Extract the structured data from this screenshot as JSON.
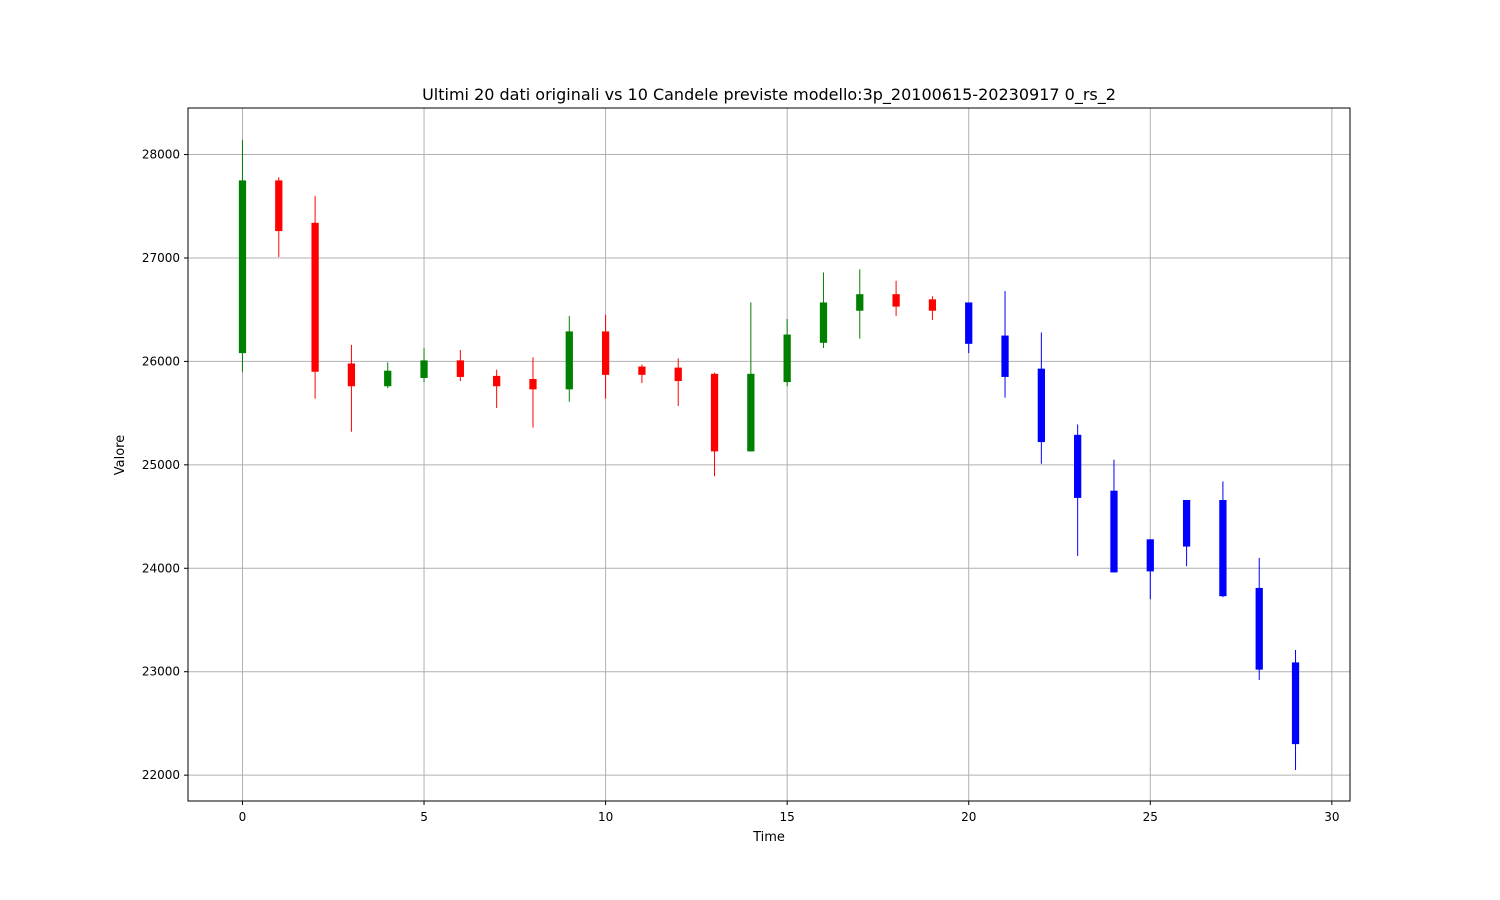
{
  "chart_data": {
    "type": "candlestick",
    "title": "Ultimi 20 dati originali vs 10 Candele previste modello:3p_20100615-20230917 0_rs_2",
    "xlabel": "Time",
    "ylabel": "Valore",
    "xlim": [
      -1.5,
      30.5
    ],
    "ylim": [
      21750,
      28450
    ],
    "xticks": [
      0,
      5,
      10,
      15,
      20,
      25,
      30
    ],
    "yticks": [
      22000,
      23000,
      24000,
      25000,
      26000,
      27000,
      28000
    ],
    "grid": true,
    "colors": {
      "up": "#008000",
      "down": "#ff0000",
      "forecast": "#0000ff"
    },
    "series": [
      {
        "kind": "original",
        "candles": [
          {
            "x": 0,
            "open": 26080,
            "close": 27750,
            "high": 28140,
            "low": 25900
          },
          {
            "x": 1,
            "open": 27750,
            "close": 27260,
            "high": 27780,
            "low": 27010
          },
          {
            "x": 2,
            "open": 27340,
            "close": 25900,
            "high": 27600,
            "low": 25640
          },
          {
            "x": 3,
            "open": 25980,
            "close": 25760,
            "high": 26160,
            "low": 25320
          },
          {
            "x": 4,
            "open": 25760,
            "close": 25910,
            "high": 25990,
            "low": 25740
          },
          {
            "x": 5,
            "open": 25840,
            "close": 26010,
            "high": 26130,
            "low": 25800
          },
          {
            "x": 6,
            "open": 26010,
            "close": 25850,
            "high": 26110,
            "low": 25810
          },
          {
            "x": 7,
            "open": 25860,
            "close": 25760,
            "high": 25920,
            "low": 25550
          },
          {
            "x": 8,
            "open": 25830,
            "close": 25730,
            "high": 26040,
            "low": 25360
          },
          {
            "x": 9,
            "open": 25730,
            "close": 26290,
            "high": 26440,
            "low": 25610
          },
          {
            "x": 10,
            "open": 26290,
            "close": 25870,
            "high": 26450,
            "low": 25640
          },
          {
            "x": 11,
            "open": 25950,
            "close": 25870,
            "high": 25970,
            "low": 25790
          },
          {
            "x": 12,
            "open": 25940,
            "close": 25810,
            "high": 26030,
            "low": 25570
          },
          {
            "x": 13,
            "open": 25880,
            "close": 25130,
            "high": 25890,
            "low": 24890
          },
          {
            "x": 14,
            "open": 25130,
            "close": 25880,
            "high": 26570,
            "low": 25130
          },
          {
            "x": 15,
            "open": 25800,
            "close": 26260,
            "high": 26410,
            "low": 25760
          },
          {
            "x": 16,
            "open": 26180,
            "close": 26570,
            "high": 26860,
            "low": 26130
          },
          {
            "x": 17,
            "open": 26490,
            "close": 26650,
            "high": 26890,
            "low": 26220
          },
          {
            "x": 18,
            "open": 26650,
            "close": 26530,
            "high": 26780,
            "low": 26440
          },
          {
            "x": 19,
            "open": 26600,
            "close": 26490,
            "high": 26630,
            "low": 26400
          }
        ]
      },
      {
        "kind": "forecast",
        "candles": [
          {
            "x": 20,
            "open": 26570,
            "close": 26170,
            "high": 26570,
            "low": 26080
          },
          {
            "x": 21,
            "open": 26250,
            "close": 25850,
            "high": 26680,
            "low": 25650
          },
          {
            "x": 22,
            "open": 25930,
            "close": 25220,
            "high": 26280,
            "low": 25010
          },
          {
            "x": 23,
            "open": 25290,
            "close": 24680,
            "high": 25390,
            "low": 24120
          },
          {
            "x": 24,
            "open": 24750,
            "close": 23960,
            "high": 25050,
            "low": 23960
          },
          {
            "x": 25,
            "open": 24280,
            "close": 23970,
            "high": 24280,
            "low": 23700
          },
          {
            "x": 26,
            "open": 24660,
            "close": 24210,
            "high": 24660,
            "low": 24020
          },
          {
            "x": 27,
            "open": 24660,
            "close": 23730,
            "high": 24840,
            "low": 23720
          },
          {
            "x": 28,
            "open": 23810,
            "close": 23020,
            "high": 24100,
            "low": 22920
          },
          {
            "x": 29,
            "open": 23090,
            "close": 22300,
            "high": 23210,
            "low": 22050
          }
        ]
      }
    ]
  }
}
